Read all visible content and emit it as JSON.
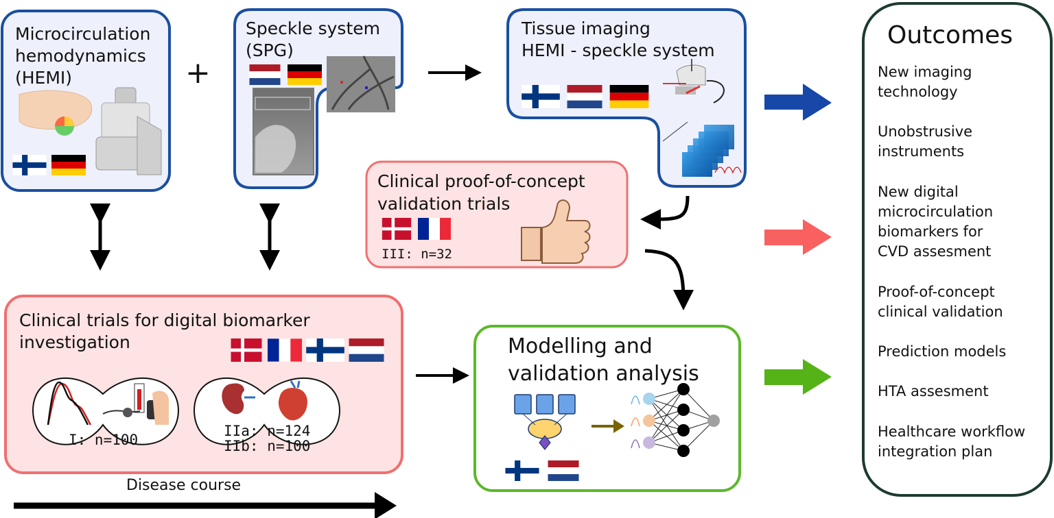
{
  "hemi": {
    "line1": "Microcirculation",
    "line2": "hemodynamics",
    "line3": "(HEMI)"
  },
  "plus_sign": "+",
  "spg": {
    "line1": "Speckle system",
    "line2": "(SPG)"
  },
  "tissue": {
    "line1": "Tissue imaging",
    "line2": "HEMI - speckle system"
  },
  "poc": {
    "line1": "Clinical proof-of-concept",
    "line2": "validation trials",
    "cohort": "III: n=32"
  },
  "trials": {
    "line1": "Clinical trials for digital biomarker",
    "line2": "investigation",
    "cohort_i": "I: n=100",
    "cohort_iia": "IIa: n=124",
    "cohort_iib": "IIb: n=100"
  },
  "disease_course": "Disease course",
  "modelling": {
    "line1": "Modelling and",
    "line2": "validation analysis"
  },
  "outcomes": {
    "title": "Outcomes",
    "items": [
      [
        "New imaging",
        "technology"
      ],
      [
        "Unobstrusive",
        "instruments"
      ],
      [
        "New digital",
        "microcirculation",
        "biomarkers for",
        "CVD assesment"
      ],
      [
        "Proof-of-concept",
        "clinical validation"
      ],
      [
        "Prediction models"
      ],
      [
        "HTA assesment"
      ],
      [
        "Healthcare workflow",
        "integration plan"
      ]
    ]
  },
  "colors": {
    "blue_border": "#1a4fa0",
    "blue_fill": "#eef0fb",
    "red_border": "#f07070",
    "red_fill": "#fde3e3",
    "green_border": "#5cb82a",
    "outcomes_border": "#1d3b30",
    "blue_arrow": "#1748a8",
    "red_arrow": "#f96060",
    "green_arrow": "#55b318"
  }
}
